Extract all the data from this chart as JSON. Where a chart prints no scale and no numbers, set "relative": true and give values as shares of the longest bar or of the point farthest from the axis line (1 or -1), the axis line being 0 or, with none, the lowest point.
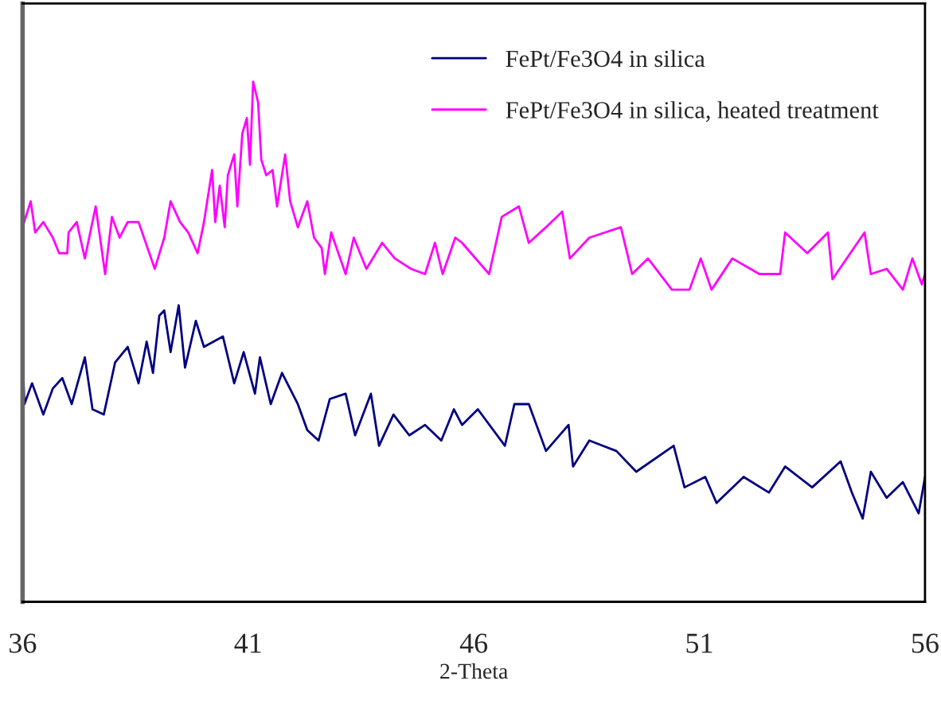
{
  "chart_data": {
    "type": "line",
    "xlabel": "2-Theta",
    "relative": true,
    "xlim": [
      36,
      56
    ],
    "xticks": [
      36,
      41,
      46,
      51,
      56
    ],
    "tick_labels": "x",
    "grid": false,
    "legend": "top right",
    "marker": "none",
    "line_style": "solid",
    "series": [
      {
        "name": "FePt/Fe3O4 in silica",
        "color": "#000080",
        "x": [
          36.0,
          36.04,
          36.21,
          36.46,
          36.67,
          36.88,
          37.09,
          37.38,
          37.55,
          37.8,
          38.05,
          38.33,
          38.57,
          38.75,
          38.89,
          39.03,
          39.14,
          39.28,
          39.46,
          39.6,
          39.84,
          40.02,
          40.44,
          40.69,
          40.9,
          41.15,
          41.26,
          41.5,
          41.75,
          42.1,
          42.31,
          42.56,
          42.81,
          43.16,
          43.37,
          43.72,
          43.9,
          44.22,
          44.57,
          44.92,
          45.28,
          45.56,
          45.74,
          46.09,
          46.69,
          46.9,
          47.22,
          47.6,
          48.1,
          48.2,
          48.56,
          49.16,
          49.6,
          50.43,
          50.67,
          51.13,
          51.38,
          51.98,
          52.54,
          52.9,
          53.5,
          54.13,
          54.38,
          54.62,
          54.8,
          55.15,
          55.51,
          55.86,
          56.0
        ],
        "values": [
          0.47,
          0.38,
          0.42,
          0.36,
          0.41,
          0.43,
          0.38,
          0.47,
          0.37,
          0.36,
          0.46,
          0.49,
          0.42,
          0.5,
          0.44,
          0.55,
          0.56,
          0.48,
          0.57,
          0.45,
          0.54,
          0.49,
          0.51,
          0.42,
          0.48,
          0.4,
          0.47,
          0.38,
          0.44,
          0.38,
          0.33,
          0.31,
          0.39,
          0.4,
          0.32,
          0.4,
          0.3,
          0.36,
          0.32,
          0.34,
          0.31,
          0.37,
          0.34,
          0.37,
          0.3,
          0.38,
          0.38,
          0.29,
          0.34,
          0.26,
          0.31,
          0.29,
          0.25,
          0.3,
          0.22,
          0.24,
          0.19,
          0.24,
          0.21,
          0.26,
          0.22,
          0.27,
          0.21,
          0.16,
          0.25,
          0.2,
          0.23,
          0.17,
          0.24
        ]
      },
      {
        "name": "FePt/Fe3O4 in silica, heated treatment",
        "color": "#ff00ff",
        "x": [
          36.0,
          36.18,
          36.28,
          36.46,
          36.67,
          36.81,
          36.99,
          37.02,
          37.2,
          37.38,
          37.62,
          37.83,
          37.98,
          38.15,
          38.33,
          38.57,
          38.93,
          39.14,
          39.28,
          39.49,
          39.67,
          39.88,
          40.02,
          40.2,
          40.27,
          40.37,
          40.48,
          40.55,
          40.69,
          40.76,
          40.87,
          40.97,
          41.04,
          41.11,
          41.22,
          41.29,
          41.4,
          41.54,
          41.64,
          41.82,
          41.93,
          42.1,
          42.31,
          42.46,
          42.63,
          42.7,
          42.84,
          43.16,
          43.34,
          43.62,
          43.97,
          44.25,
          44.61,
          44.92,
          45.14,
          45.31,
          45.59,
          45.74,
          46.34,
          46.62,
          47.0,
          47.22,
          47.6,
          47.96,
          48.13,
          48.56,
          49.26,
          49.51,
          49.86,
          50.39,
          50.78,
          51.03,
          51.27,
          51.73,
          52.33,
          52.79,
          52.9,
          53.39,
          53.85,
          53.95,
          54.66,
          54.8,
          55.15,
          55.51,
          55.72,
          55.93,
          56.0
        ],
        "values": [
          0.72,
          0.77,
          0.71,
          0.73,
          0.7,
          0.67,
          0.67,
          0.71,
          0.73,
          0.66,
          0.76,
          0.63,
          0.74,
          0.7,
          0.73,
          0.73,
          0.64,
          0.7,
          0.77,
          0.73,
          0.71,
          0.67,
          0.73,
          0.83,
          0.73,
          0.8,
          0.72,
          0.82,
          0.86,
          0.76,
          0.9,
          0.93,
          0.84,
          1.0,
          0.96,
          0.85,
          0.82,
          0.83,
          0.76,
          0.86,
          0.77,
          0.72,
          0.77,
          0.7,
          0.68,
          0.63,
          0.71,
          0.63,
          0.7,
          0.64,
          0.69,
          0.66,
          0.64,
          0.63,
          0.69,
          0.63,
          0.7,
          0.69,
          0.63,
          0.74,
          0.76,
          0.69,
          0.72,
          0.75,
          0.66,
          0.7,
          0.72,
          0.63,
          0.66,
          0.6,
          0.6,
          0.66,
          0.6,
          0.66,
          0.63,
          0.63,
          0.71,
          0.67,
          0.71,
          0.62,
          0.71,
          0.63,
          0.64,
          0.6,
          0.66,
          0.61,
          0.63
        ]
      }
    ]
  }
}
